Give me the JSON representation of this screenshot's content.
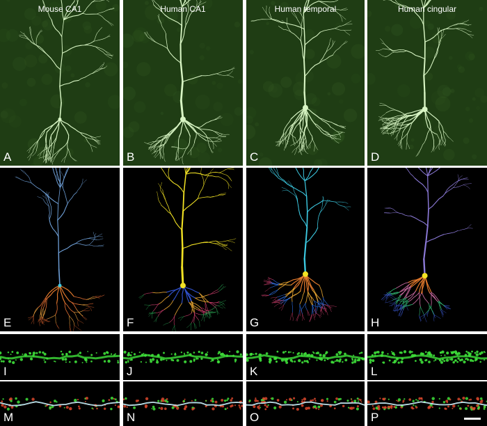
{
  "columns": [
    "Mouse CA1",
    "Human CA1",
    "Human temporal",
    "Human cingular"
  ],
  "rows": [
    {
      "kind": "fluorescence",
      "panels": [
        {
          "label": "A",
          "column_title": "Mouse CA1"
        },
        {
          "label": "B",
          "column_title": "Human CA1"
        },
        {
          "label": "C",
          "column_title": "Human temporal"
        },
        {
          "label": "D",
          "column_title": "Human cingular"
        }
      ]
    },
    {
      "kind": "reconstruction",
      "panels": [
        {
          "label": "E"
        },
        {
          "label": "F"
        },
        {
          "label": "G"
        },
        {
          "label": "H"
        }
      ]
    },
    {
      "kind": "dendrite-fluorescence",
      "panels": [
        {
          "label": "I"
        },
        {
          "label": "J"
        },
        {
          "label": "K"
        },
        {
          "label": "L"
        }
      ]
    },
    {
      "kind": "dendrite-reconstruction",
      "panels": [
        {
          "label": "M"
        },
        {
          "label": "N"
        },
        {
          "label": "O"
        },
        {
          "label": "P"
        }
      ]
    }
  ],
  "colors": {
    "fluorescence_bg": "#1f3d14",
    "fluorescence_stroke": "#d8f5c4",
    "reconstruction_bg": "#000000",
    "mouse_dendrite": "#6fa0d8",
    "yellow_soma": "#f2e224",
    "cyan_apical": "#3cc8e0",
    "violet_apical": "#8c7ad8",
    "spine_green": "#3ee03a",
    "spine_red": "#d8462c",
    "shaft_white": "#ffffff"
  },
  "scale_bar": true
}
